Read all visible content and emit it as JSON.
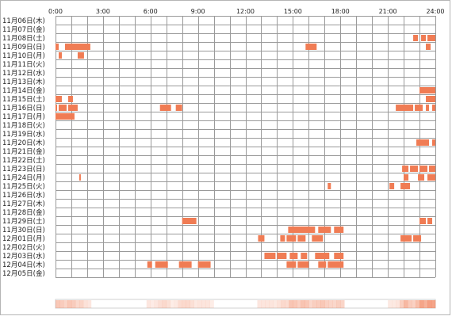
{
  "chart_data": {
    "type": "heatmap",
    "title": "",
    "xlabel": "",
    "ylabel": "",
    "x_ticks": [
      "0:00",
      "3:00",
      "6:00",
      "9:00",
      "12:00",
      "15:00",
      "18:00",
      "21:00",
      "24:00"
    ],
    "xlim": [
      0,
      24
    ],
    "grid": true,
    "rows": [
      {
        "label": "11月06日(木)",
        "intervals": []
      },
      {
        "label": "11月07日(金)",
        "intervals": []
      },
      {
        "label": "11月08日(土)",
        "intervals": [
          [
            22.6,
            22.9
          ],
          [
            23.1,
            23.4
          ],
          [
            23.5,
            24.0
          ]
        ]
      },
      {
        "label": "11月09日(日)",
        "intervals": [
          [
            0.0,
            0.2
          ],
          [
            0.6,
            2.2
          ],
          [
            15.8,
            16.5
          ],
          [
            23.4,
            23.7
          ]
        ]
      },
      {
        "label": "11月10日(月)",
        "intervals": [
          [
            0.2,
            0.4
          ],
          [
            1.4,
            1.8
          ]
        ]
      },
      {
        "label": "11月11日(火)",
        "intervals": []
      },
      {
        "label": "11月12日(水)",
        "intervals": []
      },
      {
        "label": "11月13日(木)",
        "intervals": []
      },
      {
        "label": "11月14日(金)",
        "intervals": [
          [
            23.0,
            24.0
          ]
        ]
      },
      {
        "label": "11月15日(土)",
        "intervals": [
          [
            0.0,
            0.4
          ],
          [
            0.8,
            1.1
          ],
          [
            23.4,
            24.0
          ]
        ]
      },
      {
        "label": "11月16日(日)",
        "intervals": [
          [
            0.0,
            0.1
          ],
          [
            0.2,
            0.7
          ],
          [
            0.8,
            1.4
          ],
          [
            6.6,
            7.3
          ],
          [
            7.6,
            8.0
          ],
          [
            21.5,
            22.6
          ],
          [
            22.7,
            23.2
          ],
          [
            23.4,
            23.6
          ],
          [
            23.8,
            24.0
          ]
        ]
      },
      {
        "label": "11月17日(月)",
        "intervals": [
          [
            0.0,
            1.2
          ]
        ]
      },
      {
        "label": "11月18日(火)",
        "intervals": []
      },
      {
        "label": "11月19日(水)",
        "intervals": []
      },
      {
        "label": "11月20日(木)",
        "intervals": [
          [
            22.8,
            23.6
          ],
          [
            23.8,
            24.0
          ]
        ]
      },
      {
        "label": "11月21日(金)",
        "intervals": []
      },
      {
        "label": "11月22日(土)",
        "intervals": []
      },
      {
        "label": "11月23日(日)",
        "intervals": [
          [
            21.9,
            22.3
          ],
          [
            22.4,
            22.9
          ],
          [
            23.0,
            23.5
          ],
          [
            23.6,
            24.0
          ]
        ]
      },
      {
        "label": "11月24日(月)",
        "intervals": [
          [
            1.5,
            1.6
          ],
          [
            22.0,
            22.3
          ],
          [
            22.9,
            23.3
          ],
          [
            23.5,
            24.0
          ]
        ]
      },
      {
        "label": "11月25日(火)",
        "intervals": [
          [
            17.2,
            17.4
          ],
          [
            21.1,
            21.4
          ],
          [
            21.8,
            22.4
          ]
        ]
      },
      {
        "label": "11月26日(水)",
        "intervals": []
      },
      {
        "label": "11月27日(木)",
        "intervals": []
      },
      {
        "label": "11月28日(金)",
        "intervals": []
      },
      {
        "label": "11月29日(土)",
        "intervals": [
          [
            8.0,
            8.9
          ],
          [
            23.0,
            23.4
          ],
          [
            23.5,
            23.8
          ]
        ]
      },
      {
        "label": "11月30日(日)",
        "intervals": [
          [
            14.7,
            16.4
          ],
          [
            16.6,
            17.4
          ],
          [
            17.6,
            18.2
          ]
        ]
      },
      {
        "label": "12月01日(月)",
        "intervals": [
          [
            12.8,
            13.2
          ],
          [
            14.2,
            14.5
          ],
          [
            14.6,
            15.2
          ],
          [
            15.3,
            15.8
          ],
          [
            16.2,
            16.9
          ],
          [
            21.8,
            22.5
          ],
          [
            22.6,
            23.1
          ]
        ]
      },
      {
        "label": "12月02日(火)",
        "intervals": []
      },
      {
        "label": "12月03日(水)",
        "intervals": [
          [
            13.2,
            13.9
          ],
          [
            14.0,
            14.6
          ],
          [
            14.8,
            15.3
          ],
          [
            15.5,
            15.9
          ],
          [
            16.4,
            17.3
          ],
          [
            17.6,
            18.2
          ]
        ]
      },
      {
        "label": "12月04日(木)",
        "intervals": [
          [
            5.8,
            6.1
          ],
          [
            6.3,
            7.1
          ],
          [
            7.8,
            8.6
          ],
          [
            9.0,
            9.8
          ],
          [
            14.6,
            15.2
          ],
          [
            15.3,
            16.0
          ],
          [
            16.6,
            17.1
          ],
          [
            17.2,
            18.2
          ]
        ]
      },
      {
        "label": "12月05日(金)",
        "intervals": []
      }
    ],
    "colors": {
      "bar": "#f07c54",
      "bar_light": "#f7b89e",
      "grid": "#9a9a9a",
      "summary_strip": "#f07c54"
    }
  }
}
